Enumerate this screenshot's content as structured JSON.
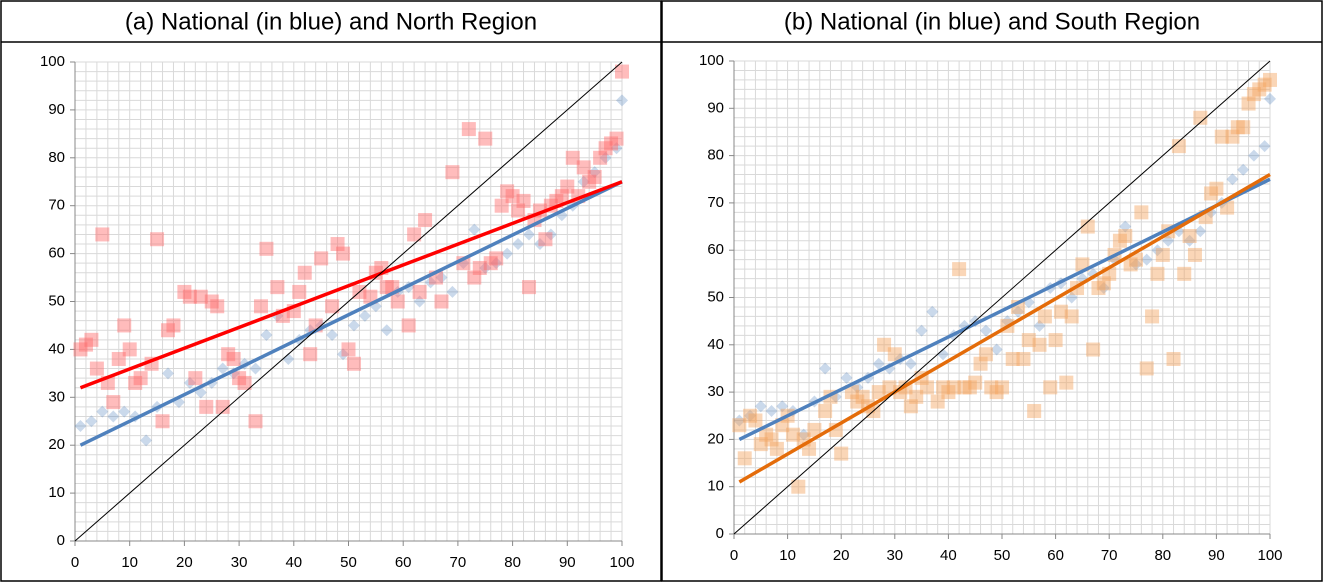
{
  "chart_data": [
    {
      "type": "scatter",
      "title": "(a)  National (in blue) and North Region",
      "xlim": [
        0,
        100
      ],
      "ylim": [
        0,
        100
      ],
      "xticks": [
        0,
        10,
        20,
        30,
        40,
        50,
        60,
        70,
        80,
        90,
        100
      ],
      "yticks": [
        0,
        10,
        20,
        30,
        40,
        50,
        60,
        70,
        80,
        90,
        100
      ],
      "grid": true,
      "minor_grid_step": 2,
      "series": [
        {
          "color": "#4f81bd",
          "marker": "diamond",
          "x": [
            1,
            3,
            5,
            7,
            9,
            11,
            13,
            15,
            17,
            19,
            21,
            23,
            25,
            27,
            29,
            31,
            33,
            35,
            37,
            39,
            41,
            43,
            45,
            47,
            49,
            51,
            53,
            55,
            57,
            59,
            61,
            63,
            65,
            67,
            69,
            71,
            73,
            75,
            77,
            79,
            81,
            83,
            85,
            87,
            89,
            91,
            93,
            95,
            97,
            99,
            100
          ],
          "values": [
            24,
            25,
            27,
            26,
            27,
            26,
            21,
            28,
            35,
            29,
            33,
            31,
            33,
            36,
            35,
            37,
            36,
            43,
            47,
            38,
            42,
            44,
            45,
            43,
            39,
            45,
            47,
            49,
            44,
            52,
            53,
            50,
            54,
            55,
            52,
            58,
            65,
            57,
            58,
            60,
            62,
            64,
            62,
            64,
            68,
            70,
            75,
            77,
            80,
            82,
            92
          ]
        },
        {
          "color": "#ff6b6b",
          "marker": "square",
          "x": [
            1,
            2,
            3,
            4,
            5,
            6,
            7,
            8,
            9,
            10,
            11,
            12,
            14,
            15,
            16,
            17,
            18,
            20,
            21,
            22,
            23,
            24,
            25,
            26,
            27,
            28,
            29,
            30,
            31,
            33,
            34,
            35,
            37,
            38,
            40,
            41,
            42,
            43,
            44,
            45,
            47,
            48,
            49,
            50,
            51,
            52,
            54,
            55,
            56,
            57,
            58,
            59,
            61,
            62,
            63,
            64,
            66,
            67,
            69,
            71,
            72,
            73,
            74,
            75,
            76,
            77,
            78,
            79,
            80,
            81,
            82,
            83,
            84,
            85,
            86,
            87,
            88,
            89,
            90,
            91,
            92,
            93,
            94,
            95,
            96,
            97,
            98,
            99,
            100
          ],
          "values": [
            40,
            41,
            42,
            36,
            64,
            33,
            29,
            38,
            45,
            40,
            33,
            34,
            37,
            63,
            25,
            44,
            45,
            52,
            51,
            34,
            51,
            28,
            50,
            49,
            28,
            39,
            38,
            34,
            33,
            25,
            49,
            61,
            53,
            47,
            48,
            52,
            56,
            39,
            45,
            59,
            49,
            62,
            60,
            40,
            37,
            52,
            51,
            56,
            57,
            53,
            53,
            50,
            45,
            64,
            52,
            67,
            55,
            50,
            77,
            58,
            86,
            55,
            57,
            84,
            58,
            59,
            70,
            73,
            72,
            69,
            71,
            53,
            67,
            69,
            63,
            70,
            71,
            72,
            74,
            80,
            72,
            78,
            75,
            76,
            80,
            82,
            83,
            84,
            98
          ]
        }
      ],
      "lines": [
        {
          "color": "#4f81bd",
          "line_width": 3.5,
          "x": [
            1,
            100
          ],
          "values": [
            20,
            75
          ]
        },
        {
          "color": "#ff0000",
          "line_width": 3.5,
          "x": [
            1,
            100
          ],
          "values": [
            32,
            75
          ]
        },
        {
          "color": "#000000",
          "line_width": 1,
          "x": [
            0,
            100
          ],
          "values": [
            0,
            100
          ]
        }
      ]
    },
    {
      "type": "scatter",
      "title": "(b)  National (in blue) and South Region",
      "xlim": [
        0,
        100
      ],
      "ylim": [
        0,
        100
      ],
      "xticks": [
        0,
        10,
        20,
        30,
        40,
        50,
        60,
        70,
        80,
        90,
        100
      ],
      "yticks": [
        0,
        10,
        20,
        30,
        40,
        50,
        60,
        70,
        80,
        90,
        100
      ],
      "grid": true,
      "minor_grid_step": 2,
      "series": [
        {
          "color": "#4f81bd",
          "marker": "diamond",
          "x": [
            1,
            3,
            5,
            7,
            9,
            11,
            13,
            15,
            17,
            19,
            21,
            23,
            25,
            27,
            29,
            31,
            33,
            35,
            37,
            39,
            41,
            43,
            45,
            47,
            49,
            51,
            53,
            55,
            57,
            59,
            61,
            63,
            65,
            67,
            69,
            71,
            73,
            75,
            77,
            79,
            81,
            83,
            85,
            87,
            89,
            91,
            93,
            95,
            97,
            99,
            100
          ],
          "values": [
            24,
            25,
            27,
            26,
            27,
            26,
            21,
            28,
            35,
            29,
            33,
            31,
            33,
            36,
            35,
            37,
            36,
            43,
            47,
            38,
            42,
            44,
            45,
            43,
            39,
            45,
            47,
            49,
            44,
            52,
            53,
            50,
            54,
            55,
            52,
            58,
            65,
            57,
            58,
            60,
            62,
            64,
            62,
            64,
            68,
            70,
            75,
            77,
            80,
            82,
            92
          ]
        },
        {
          "color": "#f4a460",
          "marker": "square",
          "x": [
            1,
            2,
            3,
            4,
            5,
            6,
            7,
            8,
            9,
            10,
            11,
            12,
            13,
            14,
            15,
            17,
            18,
            19,
            20,
            22,
            23,
            24,
            25,
            26,
            27,
            28,
            29,
            30,
            31,
            32,
            33,
            34,
            35,
            36,
            38,
            39,
            40,
            41,
            42,
            43,
            44,
            45,
            46,
            47,
            48,
            49,
            50,
            51,
            52,
            53,
            54,
            55,
            56,
            57,
            58,
            59,
            60,
            61,
            62,
            63,
            64,
            65,
            66,
            67,
            68,
            69,
            70,
            71,
            72,
            73,
            74,
            75,
            76,
            77,
            78,
            79,
            80,
            81,
            82,
            83,
            84,
            85,
            86,
            87,
            88,
            89,
            90,
            91,
            92,
            93,
            94,
            95,
            96,
            97,
            98,
            99,
            100
          ],
          "values": [
            23,
            16,
            25,
            24,
            19,
            21,
            20,
            18,
            23,
            25,
            21,
            10,
            20,
            18,
            22,
            26,
            29,
            22,
            17,
            30,
            28,
            29,
            27,
            26,
            30,
            40,
            31,
            38,
            30,
            31,
            27,
            29,
            33,
            31,
            28,
            31,
            30,
            31,
            56,
            31,
            31,
            32,
            36,
            38,
            31,
            30,
            31,
            44,
            37,
            48,
            37,
            41,
            26,
            40,
            46,
            31,
            41,
            47,
            32,
            46,
            52,
            57,
            65,
            39,
            52,
            53,
            55,
            59,
            62,
            63,
            57,
            58,
            68,
            35,
            46,
            55,
            59,
            64,
            37,
            82,
            55,
            63,
            59,
            88,
            67,
            72,
            73,
            84,
            69,
            84,
            86,
            86,
            91,
            93,
            94,
            95,
            96
          ]
        }
      ],
      "lines": [
        {
          "color": "#4f81bd",
          "line_width": 3.5,
          "x": [
            1,
            100
          ],
          "values": [
            20,
            75
          ]
        },
        {
          "color": "#e46c0a",
          "line_width": 3.5,
          "x": [
            1,
            100
          ],
          "values": [
            11,
            76
          ]
        },
        {
          "color": "#000000",
          "line_width": 1,
          "x": [
            0,
            100
          ],
          "values": [
            0,
            100
          ]
        }
      ]
    }
  ]
}
